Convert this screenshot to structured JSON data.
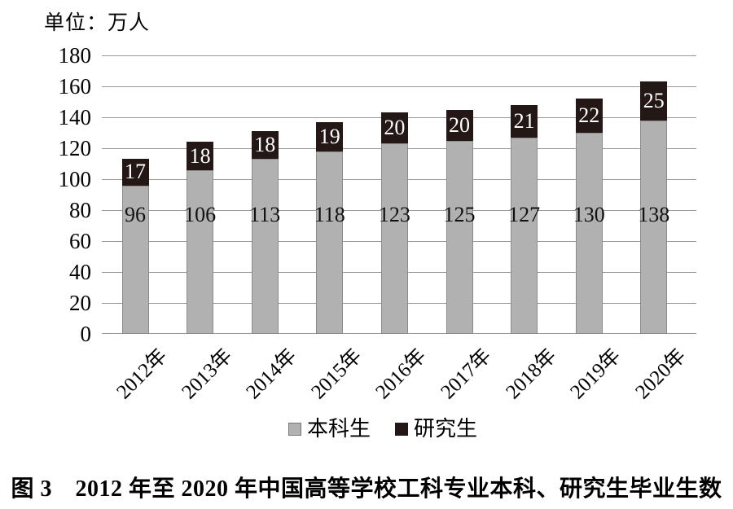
{
  "unit_label": "单位：万人",
  "caption": "图 3　2012 年至 2020 年中国高等学校工科专业本科、研究生毕业生数",
  "colors": {
    "undergrad_bar": "#b1b1b1",
    "undergrad_border": "#8c8c8c",
    "grad_bar": "#231815",
    "gridline": "#999999",
    "text": "#000000",
    "bar_value_light": "#ffffff"
  },
  "chart_data": {
    "type": "bar",
    "stacked": true,
    "title": "",
    "xlabel": "",
    "ylabel": "单位：万人",
    "categories": [
      "2012年",
      "2013年",
      "2014年",
      "2015年",
      "2016年",
      "2017年",
      "2018年",
      "2019年",
      "2020年"
    ],
    "series": [
      {
        "name": "本科生",
        "color": "#b1b1b1",
        "values": [
          96,
          106,
          113,
          118,
          123,
          125,
          127,
          130,
          138
        ]
      },
      {
        "name": "研究生",
        "color": "#231815",
        "values": [
          17,
          18,
          18,
          19,
          20,
          20,
          21,
          22,
          25
        ]
      }
    ],
    "ylim": [
      0,
      180
    ],
    "yticks": [
      0,
      20,
      40,
      60,
      80,
      100,
      120,
      140,
      160,
      180
    ],
    "grid": "horizontal",
    "legend_position": "bottom"
  }
}
